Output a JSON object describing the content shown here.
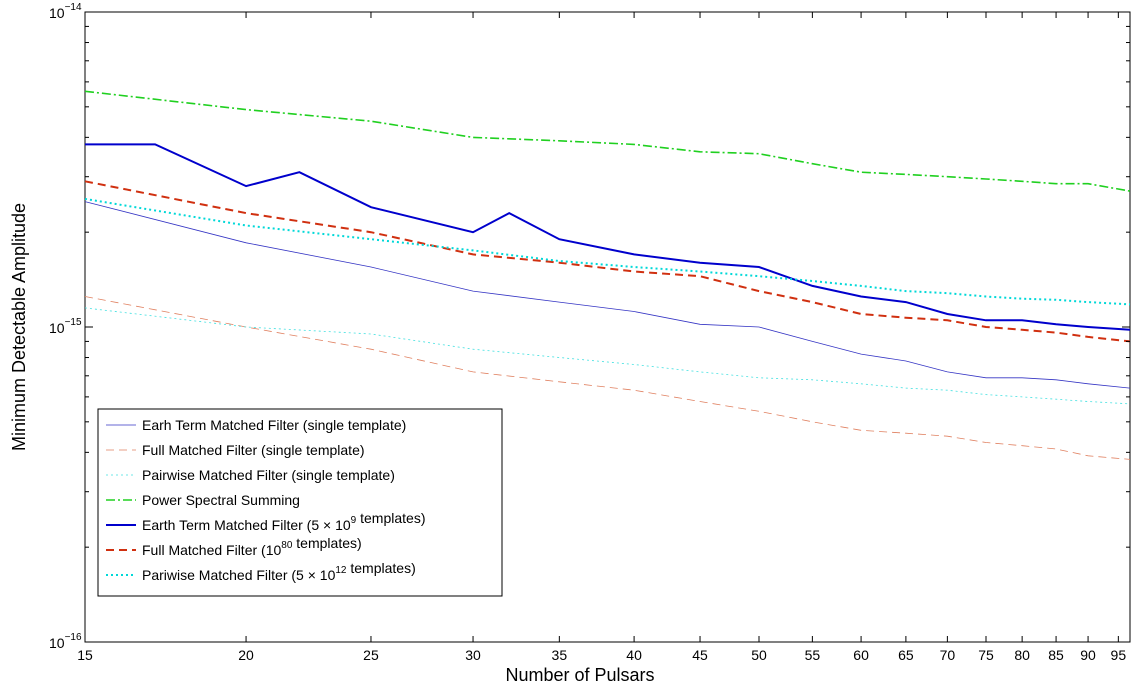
{
  "chart_data": {
    "type": "line",
    "xlabel": "Number of Pulsars",
    "ylabel": "Minimum Detectable Amplitude",
    "xscale": "log",
    "yscale": "log",
    "xlim": [
      15,
      97
    ],
    "ylim": [
      1e-16,
      1e-14
    ],
    "grid": false,
    "legend_position": "bottom-left",
    "x_ticks": [
      15,
      20,
      25,
      30,
      35,
      40,
      45,
      50,
      55,
      60,
      65,
      70,
      75,
      80,
      85,
      90,
      95
    ],
    "x_tick_labels": [
      "15",
      "20",
      "25",
      "30",
      "35",
      "40",
      "45",
      "50",
      "55",
      "60",
      "65",
      "70",
      "75",
      "80",
      "85",
      "90",
      "95"
    ],
    "y_ticks": [
      {
        "value": 1e-14,
        "base": "10",
        "exp": "−14"
      },
      {
        "value": 1e-15,
        "base": "10",
        "exp": "−15"
      },
      {
        "value": 1e-16,
        "base": "10",
        "exp": "−16"
      }
    ],
    "series": [
      {
        "name_parts": [
          "Earh Term Matched Filter (single template)"
        ],
        "color": "#3535c4",
        "style": "solid",
        "width": 0.8,
        "points": [
          [
            15,
            2.5e-15
          ],
          [
            20,
            1.85e-15
          ],
          [
            25,
            1.55e-15
          ],
          [
            30,
            1.3e-15
          ],
          [
            35,
            1.2e-15
          ],
          [
            40,
            1.12e-15
          ],
          [
            45,
            1.02e-15
          ],
          [
            50,
            1e-15
          ],
          [
            55,
            9e-16
          ],
          [
            60,
            8.2e-16
          ],
          [
            65,
            7.8e-16
          ],
          [
            70,
            7.2e-16
          ],
          [
            75,
            6.9e-16
          ],
          [
            80,
            6.9e-16
          ],
          [
            85,
            6.8e-16
          ],
          [
            90,
            6.6e-16
          ],
          [
            97,
            6.4e-16
          ]
        ]
      },
      {
        "name_parts": [
          "Full Matched Filter (single template)"
        ],
        "color": "#e08060",
        "style": "dashed",
        "width": 0.8,
        "points": [
          [
            15,
            1.25e-15
          ],
          [
            20,
            1e-15
          ],
          [
            25,
            8.5e-16
          ],
          [
            30,
            7.2e-16
          ],
          [
            35,
            6.7e-16
          ],
          [
            40,
            6.3e-16
          ],
          [
            45,
            5.8e-16
          ],
          [
            50,
            5.4e-16
          ],
          [
            55,
            5e-16
          ],
          [
            60,
            4.7e-16
          ],
          [
            65,
            4.6e-16
          ],
          [
            70,
            4.5e-16
          ],
          [
            75,
            4.3e-16
          ],
          [
            80,
            4.2e-16
          ],
          [
            85,
            4.1e-16
          ],
          [
            90,
            3.9e-16
          ],
          [
            97,
            3.8e-16
          ]
        ]
      },
      {
        "name_parts": [
          "Pairwise Matched Filter (single template)"
        ],
        "color": "#40e0e0",
        "style": "dotted",
        "width": 0.8,
        "points": [
          [
            15,
            1.15e-15
          ],
          [
            20,
            1e-15
          ],
          [
            25,
            9.5e-16
          ],
          [
            30,
            8.5e-16
          ],
          [
            35,
            8e-16
          ],
          [
            40,
            7.6e-16
          ],
          [
            45,
            7.2e-16
          ],
          [
            50,
            6.9e-16
          ],
          [
            55,
            6.8e-16
          ],
          [
            60,
            6.6e-16
          ],
          [
            65,
            6.4e-16
          ],
          [
            70,
            6.3e-16
          ],
          [
            75,
            6.1e-16
          ],
          [
            80,
            6e-16
          ],
          [
            85,
            5.9e-16
          ],
          [
            90,
            5.8e-16
          ],
          [
            97,
            5.7e-16
          ]
        ]
      },
      {
        "name_parts": [
          "Power Spectral Summing"
        ],
        "color": "#20d020",
        "style": "dashdot",
        "width": 1.6,
        "points": [
          [
            15,
            5.6e-15
          ],
          [
            20,
            4.9e-15
          ],
          [
            25,
            4.5e-15
          ],
          [
            30,
            4e-15
          ],
          [
            35,
            3.9e-15
          ],
          [
            40,
            3.8e-15
          ],
          [
            45,
            3.6e-15
          ],
          [
            50,
            3.55e-15
          ],
          [
            55,
            3.3e-15
          ],
          [
            60,
            3.1e-15
          ],
          [
            65,
            3.05e-15
          ],
          [
            70,
            3e-15
          ],
          [
            75,
            2.95e-15
          ],
          [
            80,
            2.9e-15
          ],
          [
            85,
            2.85e-15
          ],
          [
            90,
            2.85e-15
          ],
          [
            97,
            2.7e-15
          ]
        ]
      },
      {
        "name_parts": [
          "Earth Term Matched Filter (5 × 10",
          {
            "sup": "9"
          },
          " templates)"
        ],
        "color": "#0000cc",
        "style": "solid",
        "width": 2.0,
        "points": [
          [
            15,
            3.8e-15
          ],
          [
            17,
            3.8e-15
          ],
          [
            20,
            2.8e-15
          ],
          [
            22,
            3.1e-15
          ],
          [
            25,
            2.4e-15
          ],
          [
            30,
            2e-15
          ],
          [
            32,
            2.3e-15
          ],
          [
            35,
            1.9e-15
          ],
          [
            40,
            1.7e-15
          ],
          [
            45,
            1.6e-15
          ],
          [
            50,
            1.55e-15
          ],
          [
            55,
            1.35e-15
          ],
          [
            60,
            1.25e-15
          ],
          [
            65,
            1.2e-15
          ],
          [
            70,
            1.1e-15
          ],
          [
            75,
            1.05e-15
          ],
          [
            80,
            1.05e-15
          ],
          [
            85,
            1.02e-15
          ],
          [
            90,
            1e-15
          ],
          [
            97,
            9.8e-16
          ]
        ]
      },
      {
        "name_parts": [
          "Full Matched Filter (10",
          {
            "sup": "80"
          },
          " templates)"
        ],
        "color": "#d03010",
        "style": "dashed",
        "width": 2.0,
        "points": [
          [
            15,
            2.9e-15
          ],
          [
            20,
            2.3e-15
          ],
          [
            25,
            2e-15
          ],
          [
            30,
            1.7e-15
          ],
          [
            35,
            1.6e-15
          ],
          [
            40,
            1.5e-15
          ],
          [
            45,
            1.45e-15
          ],
          [
            50,
            1.3e-15
          ],
          [
            55,
            1.2e-15
          ],
          [
            60,
            1.1e-15
          ],
          [
            65,
            1.07e-15
          ],
          [
            70,
            1.05e-15
          ],
          [
            75,
            1e-15
          ],
          [
            80,
            9.8e-16
          ],
          [
            85,
            9.6e-16
          ],
          [
            90,
            9.3e-16
          ],
          [
            97,
            9e-16
          ]
        ]
      },
      {
        "name_parts": [
          "Pariwise Matched Filter (5 × 10",
          {
            "sup": "12"
          },
          " templates)"
        ],
        "color": "#00d8d8",
        "style": "dotted",
        "width": 2.0,
        "points": [
          [
            15,
            2.55e-15
          ],
          [
            20,
            2.1e-15
          ],
          [
            25,
            1.9e-15
          ],
          [
            30,
            1.75e-15
          ],
          [
            35,
            1.62e-15
          ],
          [
            40,
            1.55e-15
          ],
          [
            45,
            1.5e-15
          ],
          [
            50,
            1.45e-15
          ],
          [
            55,
            1.4e-15
          ],
          [
            60,
            1.35e-15
          ],
          [
            65,
            1.3e-15
          ],
          [
            70,
            1.28e-15
          ],
          [
            75,
            1.25e-15
          ],
          [
            80,
            1.23e-15
          ],
          [
            85,
            1.22e-15
          ],
          [
            90,
            1.2e-15
          ],
          [
            97,
            1.18e-15
          ]
        ]
      }
    ]
  }
}
